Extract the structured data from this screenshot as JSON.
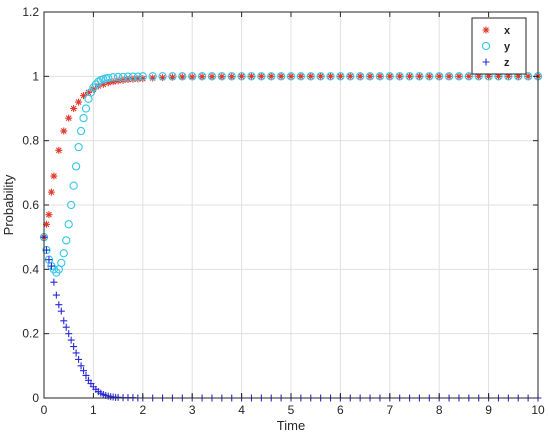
{
  "chart_data": {
    "type": "scatter",
    "title": "",
    "xlabel": "Time",
    "ylabel": "Probability",
    "xlim": [
      0,
      10
    ],
    "ylim": [
      0,
      1.2
    ],
    "xticks": [
      0,
      1,
      2,
      3,
      4,
      5,
      6,
      7,
      8,
      9,
      10
    ],
    "yticks": [
      0,
      0.2,
      0.4,
      0.6,
      0.8,
      1,
      1.2
    ],
    "xtick_labels": [
      "0",
      "1",
      "2",
      "3",
      "4",
      "5",
      "6",
      "7",
      "8",
      "9",
      "10"
    ],
    "ytick_labels": [
      "0",
      "0.2",
      "0.4",
      "0.6",
      "0.8",
      "1",
      "1.2"
    ],
    "grid": true,
    "legend_position": "top-right",
    "series": [
      {
        "name": "x",
        "marker": "asterisk",
        "color": "#e03a2f",
        "x": [
          0,
          0.05,
          0.1,
          0.15,
          0.2,
          0.3,
          0.4,
          0.5,
          0.6,
          0.7,
          0.8,
          0.9,
          1.0,
          1.1,
          1.2,
          1.3,
          1.4,
          1.5,
          1.6,
          1.7,
          1.8,
          1.9,
          2.0,
          2.2,
          2.4,
          2.6,
          2.8,
          3.0,
          3.2,
          3.4,
          3.6,
          3.8,
          4.0,
          4.2,
          4.4,
          4.6,
          4.8,
          5.0,
          5.2,
          5.4,
          5.6,
          5.8,
          6.0,
          6.2,
          6.4,
          6.6,
          6.8,
          7.0,
          7.2,
          7.4,
          7.6,
          7.8,
          8.0,
          8.2,
          8.4,
          8.6,
          8.8,
          9.0,
          9.2,
          9.4,
          9.6,
          9.8,
          10.0
        ],
        "y": [
          0.5,
          0.54,
          0.57,
          0.64,
          0.69,
          0.77,
          0.83,
          0.87,
          0.9,
          0.92,
          0.94,
          0.95,
          0.96,
          0.97,
          0.975,
          0.98,
          0.983,
          0.986,
          0.988,
          0.99,
          0.991,
          0.992,
          0.993,
          0.995,
          0.996,
          0.997,
          0.998,
          0.998,
          0.999,
          0.999,
          0.999,
          0.999,
          1,
          1,
          1,
          1,
          1,
          1,
          1,
          1,
          1,
          1,
          1,
          1,
          1,
          1,
          1,
          1,
          1,
          1,
          1,
          1,
          1,
          1,
          1,
          1,
          1,
          1,
          1,
          1,
          1,
          1,
          1
        ]
      },
      {
        "name": "y",
        "marker": "circle",
        "color": "#35c6e8",
        "x": [
          0,
          0.05,
          0.1,
          0.15,
          0.2,
          0.25,
          0.3,
          0.35,
          0.4,
          0.45,
          0.5,
          0.55,
          0.6,
          0.65,
          0.7,
          0.75,
          0.8,
          0.85,
          0.9,
          0.95,
          1.0,
          1.05,
          1.1,
          1.15,
          1.2,
          1.25,
          1.3,
          1.4,
          1.5,
          1.6,
          1.7,
          1.8,
          1.9,
          2.0,
          2.2,
          2.4,
          2.6,
          2.8,
          3.0,
          3.2,
          3.4,
          3.6,
          3.8,
          4.0,
          4.2,
          4.4,
          4.6,
          4.8,
          5.0,
          5.2,
          5.4,
          5.6,
          5.8,
          6.0,
          6.2,
          6.4,
          6.6,
          6.8,
          7.0,
          7.2,
          7.4,
          7.6,
          7.8,
          8.0,
          8.2,
          8.4,
          8.6,
          8.8,
          9.0,
          9.2,
          9.4,
          9.6,
          9.8,
          10.0
        ],
        "y": [
          0.5,
          0.46,
          0.43,
          0.41,
          0.4,
          0.39,
          0.4,
          0.42,
          0.45,
          0.49,
          0.54,
          0.6,
          0.66,
          0.72,
          0.78,
          0.83,
          0.87,
          0.9,
          0.93,
          0.95,
          0.965,
          0.975,
          0.983,
          0.988,
          0.991,
          0.993,
          0.995,
          0.997,
          0.998,
          0.998,
          0.999,
          0.999,
          0.999,
          1,
          1,
          1,
          1,
          1,
          1,
          1,
          1,
          1,
          1,
          1,
          1,
          1,
          1,
          1,
          1,
          1,
          1,
          1,
          1,
          1,
          1,
          1,
          1,
          1,
          1,
          1,
          1,
          1,
          1,
          1,
          1,
          1,
          1,
          1,
          1,
          1,
          1,
          1,
          1,
          1
        ]
      },
      {
        "name": "z",
        "marker": "plus",
        "color": "#2a2ad8",
        "x": [
          0,
          0.05,
          0.1,
          0.15,
          0.2,
          0.25,
          0.3,
          0.35,
          0.4,
          0.45,
          0.5,
          0.55,
          0.6,
          0.65,
          0.7,
          0.75,
          0.8,
          0.85,
          0.9,
          0.95,
          1.0,
          1.05,
          1.1,
          1.15,
          1.2,
          1.25,
          1.3,
          1.35,
          1.4,
          1.45,
          1.5,
          1.6,
          1.7,
          1.8,
          1.9,
          2.0,
          2.2,
          2.4,
          2.6,
          2.8,
          3.0,
          3.2,
          3.4,
          3.6,
          3.8,
          4.0,
          4.2,
          4.4,
          4.6,
          4.8,
          5.0,
          5.2,
          5.4,
          5.6,
          5.8,
          6.0,
          6.2,
          6.4,
          6.6,
          6.8,
          7.0,
          7.2,
          7.4,
          7.6,
          7.8,
          8.0,
          8.2,
          8.4,
          8.6,
          8.8,
          9.0,
          9.2,
          9.4,
          9.6,
          9.8,
          10.0
        ],
        "y": [
          0.5,
          0.46,
          0.43,
          0.41,
          0.36,
          0.32,
          0.29,
          0.27,
          0.24,
          0.22,
          0.2,
          0.18,
          0.16,
          0.14,
          0.12,
          0.1,
          0.085,
          0.07,
          0.055,
          0.045,
          0.035,
          0.027,
          0.02,
          0.015,
          0.011,
          0.008,
          0.006,
          0.004,
          0.003,
          0.002,
          0.002,
          0.001,
          0.001,
          0.001,
          0,
          0,
          0,
          0,
          0,
          0,
          0,
          0,
          0,
          0,
          0,
          0,
          0,
          0,
          0,
          0,
          0,
          0,
          0,
          0,
          0,
          0,
          0,
          0,
          0,
          0,
          0,
          0,
          0,
          0,
          0,
          0,
          0,
          0,
          0,
          0,
          0,
          0,
          0,
          0,
          0,
          0
        ]
      }
    ]
  }
}
